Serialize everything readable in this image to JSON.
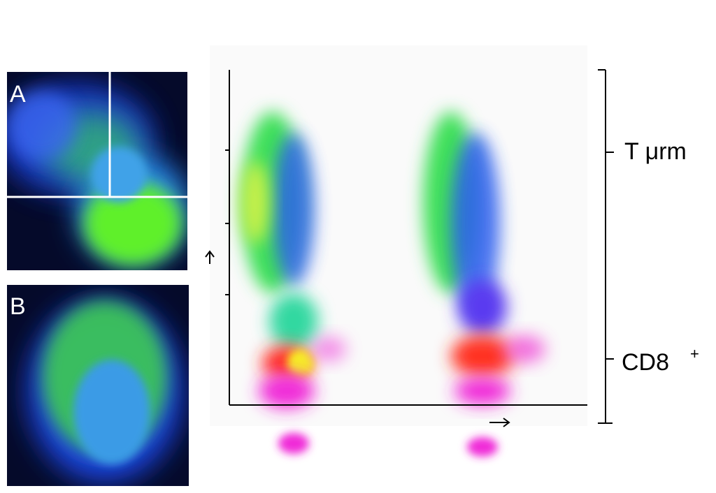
{
  "panels": [
    {
      "label": "A"
    },
    {
      "label": "B"
    }
  ],
  "annotations": {
    "upper": "T  μrm",
    "lower": {
      "base": "CD8",
      "sup": "+"
    }
  }
}
